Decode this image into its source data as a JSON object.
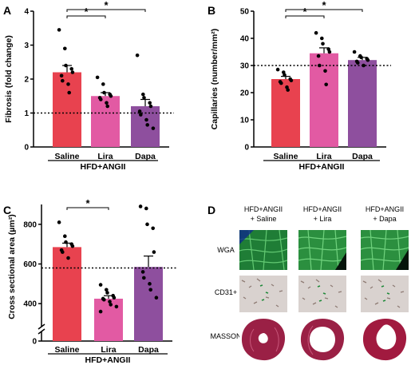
{
  "colors": {
    "saline": "#e8424f",
    "lira": "#e25aa3",
    "dapa": "#8e4f9e",
    "wga_tissue": "#2f9a45",
    "cd31_tissue": "#d9d2cf",
    "masson_tissue": "#9a2045"
  },
  "chart_data": [
    {
      "panel": "A",
      "type": "bar",
      "categories": [
        "Saline",
        "Lira",
        "Dapa"
      ],
      "values": [
        2.2,
        1.5,
        1.2
      ],
      "sem": [
        0.2,
        0.1,
        0.2
      ],
      "points": [
        [
          3.45,
          2.9,
          2.4,
          2.3,
          2.2,
          2.1,
          1.95,
          1.85,
          1.6
        ],
        [
          2.05,
          1.85,
          1.6,
          1.55,
          1.5,
          1.45,
          1.4,
          1.3,
          1.2
        ],
        [
          2.7,
          1.55,
          1.45,
          1.3,
          1.2,
          1.05,
          0.95,
          0.8,
          0.65,
          0.55
        ]
      ],
      "ylabel": "Fibrosis (fold change)",
      "ylim": [
        0,
        4
      ],
      "yticks": [
        "0",
        "1",
        "2",
        "3",
        "4"
      ],
      "reference_line": 1,
      "group_label": "HFD+ANGII",
      "significance": [
        {
          "from": "Saline",
          "to": "Lira",
          "mark": "*"
        },
        {
          "from": "Saline",
          "to": "Dapa",
          "mark": "*"
        }
      ]
    },
    {
      "panel": "B",
      "type": "bar",
      "categories": [
        "Saline",
        "Lira",
        "Dapa"
      ],
      "values": [
        25,
        34.5,
        32
      ],
      "sem": [
        1,
        2,
        1
      ],
      "points": [
        [
          28.5,
          27.5,
          26.5,
          25,
          24.5,
          24,
          23.5,
          22,
          21
        ],
        [
          42,
          40,
          38,
          36,
          35,
          33.5,
          30,
          28,
          23
        ],
        [
          35,
          33.5,
          33,
          32.5,
          32,
          31.5,
          31,
          30
        ]
      ],
      "ylabel": "Capillaries (number/mm²)",
      "ylim": [
        0,
        50
      ],
      "yticks": [
        "0",
        "10",
        "20",
        "30",
        "40",
        "50"
      ],
      "reference_line": 30,
      "group_label": "HFD+ANGII",
      "significance": [
        {
          "from": "Saline",
          "to": "Lira",
          "mark": "*"
        },
        {
          "from": "Saline",
          "to": "Dapa",
          "mark": "*"
        }
      ]
    },
    {
      "panel": "C",
      "type": "bar",
      "categories": [
        "Saline",
        "Lira",
        "Dapa"
      ],
      "values": [
        685,
        425,
        585
      ],
      "sem": [
        20,
        15,
        55
      ],
      "points": [
        [
          810,
          740,
          710,
          700,
          690,
          670,
          660,
          630
        ],
        [
          495,
          470,
          455,
          440,
          430,
          425,
          420,
          410,
          395,
          385,
          360
        ],
        [
          890,
          880,
          800,
          780,
          660,
          560,
          530,
          500,
          470,
          430
        ]
      ],
      "ylabel": "Cross sectional area (µm²)",
      "ylim": [
        0,
        900
      ],
      "yticks": [
        "0",
        "400",
        "600",
        "800"
      ],
      "axis_break": [
        0,
        300
      ],
      "reference_line": 580,
      "group_label": "HFD+ANGII",
      "significance": [
        {
          "from": "Saline",
          "to": "Lira",
          "mark": "*"
        }
      ]
    }
  ],
  "panel_a": {
    "letter": "A"
  },
  "panel_b": {
    "letter": "B"
  },
  "panel_c": {
    "letter": "C"
  },
  "panel_d": {
    "letter": "D",
    "columns": [
      {
        "line1": "HFD+ANGII",
        "line2": "+ Saline"
      },
      {
        "line1": "HFD+ANGII",
        "line2": "+ Lira"
      },
      {
        "line1": "HFD+ANGII",
        "line2": "+ Dapa"
      }
    ],
    "rows": [
      "WGA",
      "CD31+",
      "MASSON"
    ]
  }
}
